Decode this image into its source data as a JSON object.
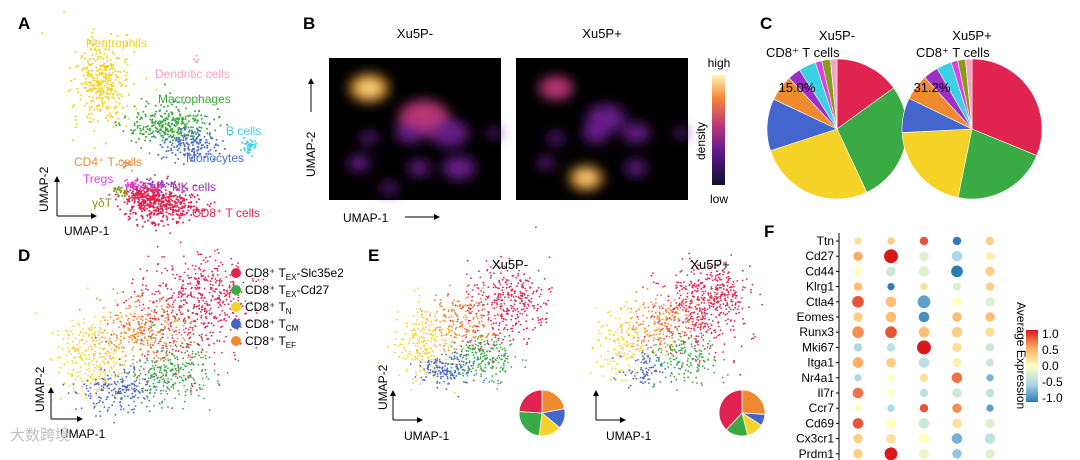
{
  "panels": {
    "A": "A",
    "B": "B",
    "C": "C",
    "D": "D",
    "E": "E",
    "F": "F"
  },
  "watermark": "大数跨境",
  "colors": {
    "neutrophils": "#f2d21e",
    "dendritic": "#f5a3c8",
    "macrophages": "#3caa3c",
    "bcells": "#3ad1e6",
    "monocytes": "#4a6bd0",
    "cd4": "#f08a3c",
    "tregs": "#e040e0",
    "nk": "#9c2fc8",
    "gdt": "#8a9a1a",
    "cd8": "#e0234f",
    "tex_slc": "#e0234f",
    "tex_cd27": "#3aaa44",
    "tn": "#f5d327",
    "tcm": "#4466cc",
    "tef": "#f08a2e"
  },
  "chart_data": [
    {
      "panel": "A",
      "type": "scatter",
      "xlabel": "UMAP-1",
      "ylabel": "UMAP-2",
      "clusters": [
        {
          "label": "Neutrophils",
          "color": "neutrophils"
        },
        {
          "label": "Dendritic cells",
          "color": "dendritic"
        },
        {
          "label": "Macrophages",
          "color": "macrophages"
        },
        {
          "label": "B cells",
          "color": "bcells"
        },
        {
          "label": "Monocytes",
          "color": "monocytes"
        },
        {
          "label": "CD4⁺ T cells",
          "color": "cd4"
        },
        {
          "label": "Tregs",
          "color": "tregs"
        },
        {
          "label": "NK cells",
          "color": "nk"
        },
        {
          "label": "γδT",
          "color": "gdt"
        },
        {
          "label": "CD8⁺ T cells",
          "color": "cd8"
        }
      ]
    },
    {
      "panel": "B",
      "type": "heatmap",
      "titles": [
        "Xu5P-",
        "Xu5P+"
      ],
      "xlabel": "UMAP-1",
      "ylabel": "UMAP-2",
      "colorbar": {
        "label": "density",
        "high": "high",
        "low": "low"
      }
    },
    {
      "panel": "C",
      "type": "pie",
      "titles": [
        "Xu5P-",
        "Xu5P+"
      ],
      "subtitle": "CD8⁺ T cells",
      "pies": [
        {
          "name": "Xu5P-",
          "label": "15.0%",
          "slices": [
            {
              "color": "#e0234f",
              "value": 15.0
            },
            {
              "color": "#3aaa44",
              "value": 28.0
            },
            {
              "color": "#f5d327",
              "value": 27.0
            },
            {
              "color": "#4466cc",
              "value": 12.0
            },
            {
              "color": "#f08a2e",
              "value": 6.0
            },
            {
              "color": "#9c2fc8",
              "value": 3.0
            },
            {
              "color": "#3ad1e6",
              "value": 4.0
            },
            {
              "color": "#e040e0",
              "value": 1.5
            },
            {
              "color": "#8a9a1a",
              "value": 2.0
            },
            {
              "color": "#f5a3c8",
              "value": 1.5
            }
          ]
        },
        {
          "name": "Xu5P+",
          "label": "31.2%",
          "slices": [
            {
              "color": "#e0234f",
              "value": 31.2
            },
            {
              "color": "#3aaa44",
              "value": 22.0
            },
            {
              "color": "#f5d327",
              "value": 21.0
            },
            {
              "color": "#4466cc",
              "value": 8.0
            },
            {
              "color": "#f08a2e",
              "value": 6.0
            },
            {
              "color": "#9c2fc8",
              "value": 3.5
            },
            {
              "color": "#3ad1e6",
              "value": 3.5
            },
            {
              "color": "#e040e0",
              "value": 1.5
            },
            {
              "color": "#8a9a1a",
              "value": 1.8
            },
            {
              "color": "#f5a3c8",
              "value": 1.5
            }
          ]
        }
      ]
    },
    {
      "panel": "D",
      "type": "scatter",
      "xlabel": "UMAP-1",
      "ylabel": "UMAP-2",
      "legend": [
        {
          "prefix": "CD8⁺ T",
          "sub": "EX",
          "suffix": "-Slc35e2",
          "color": "tex_slc"
        },
        {
          "prefix": "CD8⁺ T",
          "sub": "EX",
          "suffix": "-Cd27",
          "color": "tex_cd27"
        },
        {
          "prefix": "CD8⁺ T",
          "sub": "N",
          "suffix": "",
          "color": "tn"
        },
        {
          "prefix": "CD8⁺ T",
          "sub": "CM",
          "suffix": "",
          "color": "tcm"
        },
        {
          "prefix": "CD8⁺ T",
          "sub": "EF",
          "suffix": "",
          "color": "tef"
        }
      ]
    },
    {
      "panel": "E",
      "type": "scatter",
      "titles": [
        "Xu5P-",
        "Xu5P+"
      ],
      "xlabel": "UMAP-1",
      "ylabel": "UMAP-2",
      "pies": [
        {
          "name": "Xu5P-",
          "slices": [
            {
              "color": "#f08a2e",
              "value": 22
            },
            {
              "color": "#4466cc",
              "value": 14
            },
            {
              "color": "#f5d327",
              "value": 16
            },
            {
              "color": "#3aaa44",
              "value": 24
            },
            {
              "color": "#e0234f",
              "value": 24
            }
          ]
        },
        {
          "name": "Xu5P+",
          "slices": [
            {
              "color": "#f08a2e",
              "value": 26
            },
            {
              "color": "#4466cc",
              "value": 8
            },
            {
              "color": "#f5d327",
              "value": 12
            },
            {
              "color": "#3aaa44",
              "value": 16
            },
            {
              "color": "#e0234f",
              "value": 38
            }
          ]
        }
      ]
    },
    {
      "panel": "F",
      "type": "dotplot",
      "genes": [
        "Ttn",
        "Cd27",
        "Cd44",
        "Klrg1",
        "Ctla4",
        "Eomes",
        "Runx3",
        "Mki67",
        "Itga1",
        "Nr4a1",
        "Il7r",
        "Ccr7",
        "Cd69",
        "Cx3cr1",
        "Prdm1"
      ],
      "n_columns": 5,
      "colorbar": {
        "label": "Average Expression",
        "ticks": [
          "1.0",
          "0.5",
          "0.0",
          "-0.5",
          "-1.0"
        ],
        "min": -1.0,
        "max": 1.0
      },
      "expression": [
        [
          0.2,
          0.3,
          0.8,
          -1.0,
          0.3
        ],
        [
          0.5,
          1.0,
          -0.2,
          -0.5,
          0.1
        ],
        [
          0.0,
          -0.3,
          -0.2,
          -1.0,
          0.3
        ],
        [
          0.4,
          -1.0,
          0.2,
          -0.2,
          0.3
        ],
        [
          0.8,
          0.4,
          -0.8,
          0.0,
          -0.2
        ],
        [
          0.3,
          0.4,
          -0.9,
          0.4,
          0.4
        ],
        [
          0.6,
          0.8,
          0.4,
          0.3,
          0.2
        ],
        [
          -0.5,
          -0.4,
          1.0,
          0.2,
          -0.3
        ],
        [
          0.5,
          0.3,
          -0.4,
          0.1,
          -0.3
        ],
        [
          -0.5,
          0.0,
          0.2,
          0.7,
          -0.7
        ],
        [
          0.7,
          0.0,
          -0.4,
          -0.3,
          -0.4
        ],
        [
          0.0,
          -0.5,
          0.8,
          0.6,
          -0.8
        ],
        [
          0.8,
          0.0,
          -0.3,
          0.2,
          -0.2
        ],
        [
          0.3,
          0.2,
          0.0,
          -0.7,
          -0.4
        ],
        [
          0.3,
          1.0,
          -0.1,
          -0.6,
          -0.2
        ]
      ],
      "size": [
        [
          0.3,
          0.3,
          0.4,
          0.4,
          0.4
        ],
        [
          0.5,
          0.9,
          0.5,
          0.6,
          0.4
        ],
        [
          0.5,
          0.5,
          0.6,
          0.7,
          0.5
        ],
        [
          0.4,
          0.3,
          0.3,
          0.4,
          0.4
        ],
        [
          0.7,
          0.6,
          0.8,
          0.5,
          0.5
        ],
        [
          0.5,
          0.6,
          0.6,
          0.5,
          0.5
        ],
        [
          0.7,
          0.7,
          0.6,
          0.6,
          0.5
        ],
        [
          0.4,
          0.4,
          0.9,
          0.5,
          0.4
        ],
        [
          0.6,
          0.5,
          0.6,
          0.5,
          0.4
        ],
        [
          0.3,
          0.3,
          0.4,
          0.6,
          0.3
        ],
        [
          0.6,
          0.3,
          0.4,
          0.5,
          0.4
        ],
        [
          0.3,
          0.3,
          0.4,
          0.5,
          0.3
        ],
        [
          0.6,
          0.6,
          0.6,
          0.5,
          0.5
        ],
        [
          0.5,
          0.5,
          0.6,
          0.6,
          0.6
        ],
        [
          0.5,
          0.8,
          0.6,
          0.5,
          0.5
        ]
      ]
    }
  ]
}
